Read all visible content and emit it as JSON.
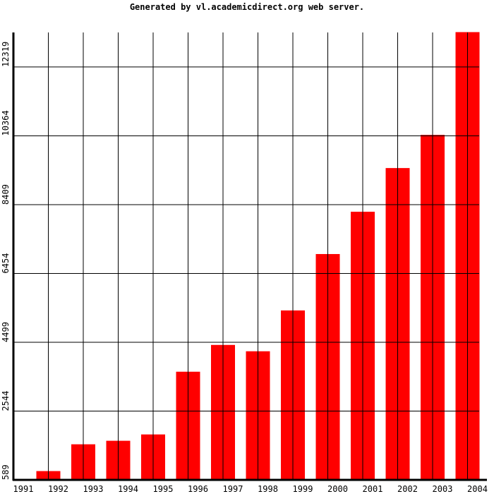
{
  "chart_data": {
    "type": "bar",
    "title": "Generated by vl.academicdirect.org web server.",
    "categories": [
      "1991",
      "1992",
      "1993",
      "1994",
      "1995",
      "1996",
      "1997",
      "1998",
      "1999",
      "2000",
      "2001",
      "2002",
      "2003",
      "2004"
    ],
    "values": [
      589,
      829,
      1590,
      1690,
      1870,
      3652,
      4413,
      4233,
      5393,
      6995,
      8197,
      9438,
      10380,
      13300
    ],
    "color": "#ff0000",
    "ylim": [
      589,
      13300
    ],
    "yticks": [
      589,
      2544,
      4499,
      6454,
      8409,
      10364,
      12319
    ],
    "grid": true
  }
}
